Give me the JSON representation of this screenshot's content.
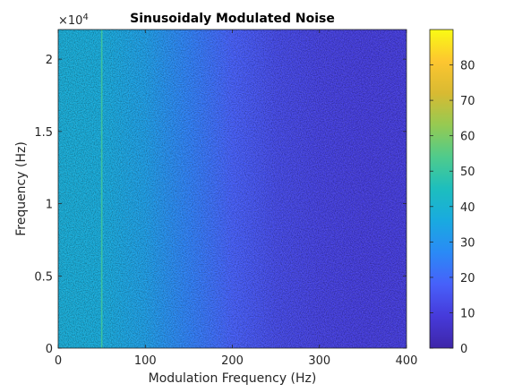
{
  "chart_data": {
    "type": "heatmap",
    "title": "Sinusoidaly Modulated Noise",
    "xlabel": "Modulation Frequency (Hz)",
    "ylabel": "Frequency (Hz)",
    "y_exponent_label": "×10",
    "y_exponent_power": "4",
    "xlim": [
      0,
      400
    ],
    "ylim": [
      0,
      22050
    ],
    "x_ticks": [
      {
        "value": 0,
        "label": "0"
      },
      {
        "value": 100,
        "label": "100"
      },
      {
        "value": 200,
        "label": "200"
      },
      {
        "value": 300,
        "label": "300"
      },
      {
        "value": 400,
        "label": "400"
      }
    ],
    "y_ticks": [
      {
        "value": 0,
        "label": "0"
      },
      {
        "value": 5000,
        "label": "0.5"
      },
      {
        "value": 10000,
        "label": "1"
      },
      {
        "value": 15000,
        "label": "1.5"
      },
      {
        "value": 20000,
        "label": "2"
      }
    ],
    "colorbar": {
      "colormap": "parula",
      "clim": [
        0,
        90
      ],
      "ticks": [
        {
          "value": 0,
          "label": "0"
        },
        {
          "value": 10,
          "label": "10"
        },
        {
          "value": 20,
          "label": "20"
        },
        {
          "value": 30,
          "label": "30"
        },
        {
          "value": 40,
          "label": "40"
        },
        {
          "value": 50,
          "label": "50"
        },
        {
          "value": 60,
          "label": "60"
        },
        {
          "value": 70,
          "label": "70"
        },
        {
          "value": 80,
          "label": "80"
        }
      ]
    },
    "intensity_profile": [
      {
        "x": 0,
        "value": 38
      },
      {
        "x": 50,
        "value": 37
      },
      {
        "x": 100,
        "value": 33
      },
      {
        "x": 150,
        "value": 25
      },
      {
        "x": 200,
        "value": 18
      },
      {
        "x": 250,
        "value": 13
      },
      {
        "x": 300,
        "value": 11
      },
      {
        "x": 350,
        "value": 10
      },
      {
        "x": 400,
        "value": 10
      }
    ],
    "highlight_line": {
      "x": 50,
      "value": 52
    },
    "colors": {
      "axis": "#262626",
      "background": "#ffffff"
    }
  }
}
